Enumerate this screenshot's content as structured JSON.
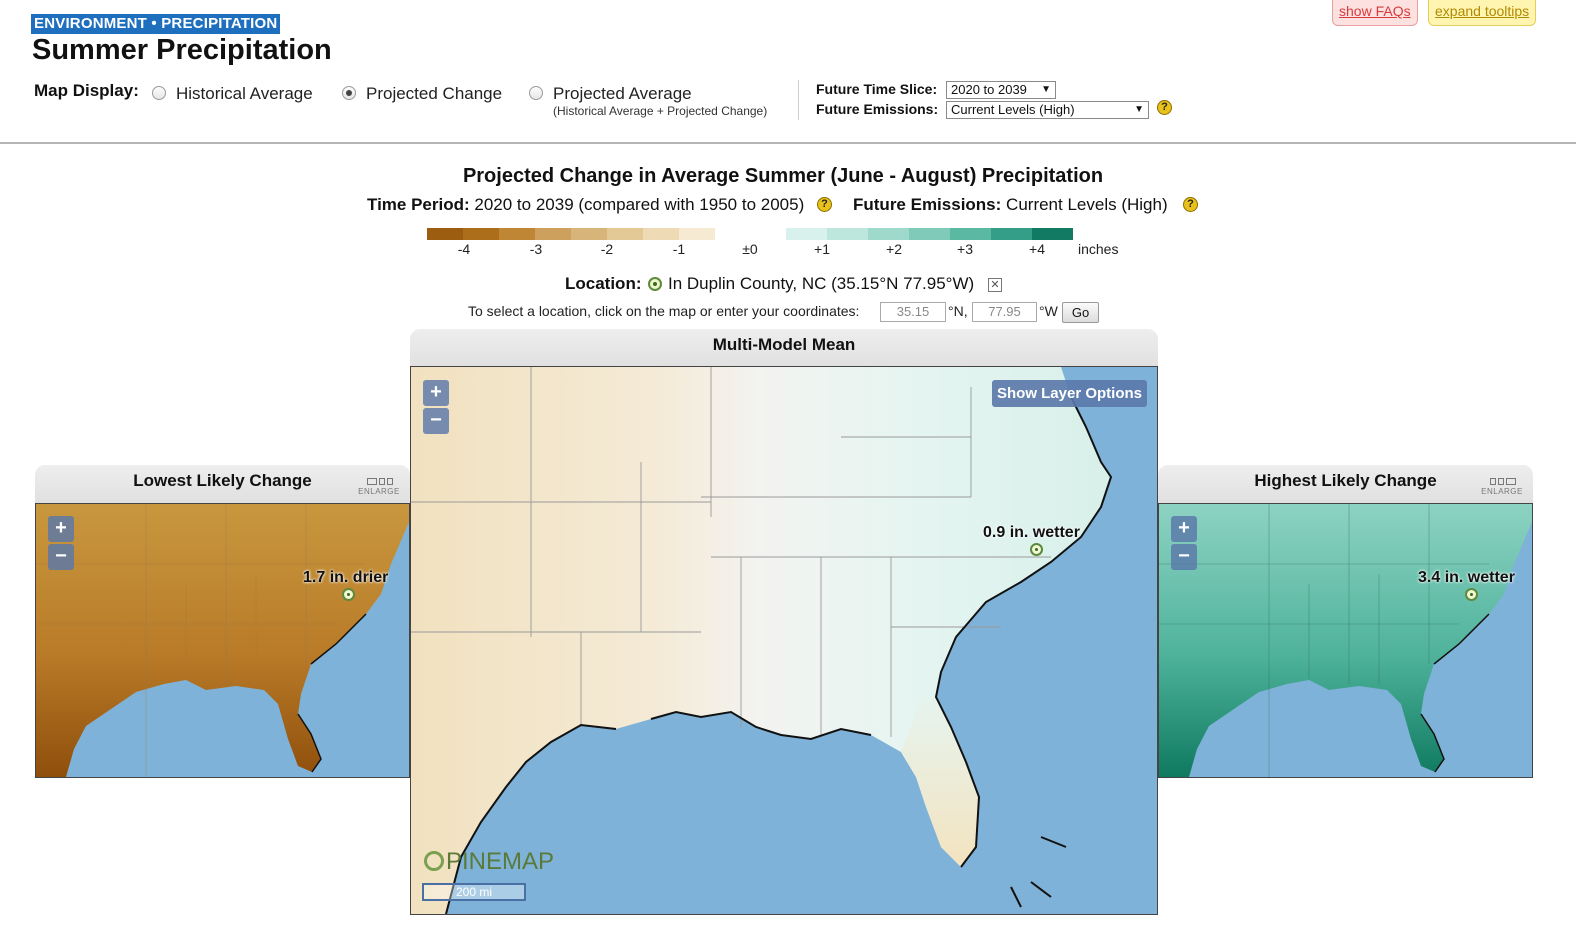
{
  "header": {
    "breadcrumb": "ENVIRONMENT • PRECIPITATION",
    "title": "Summer Precipitation",
    "faq_button": "show FAQs",
    "tooltips_button": "expand tooltips"
  },
  "controls": {
    "map_display_label": "Map Display:",
    "options": [
      {
        "label": "Historical Average",
        "checked": false
      },
      {
        "label": "Projected Change",
        "checked": true
      },
      {
        "label": "Projected Average",
        "sublabel": "(Historical Average + Projected Change)",
        "checked": false
      }
    ],
    "time_slice_label": "Future Time Slice:",
    "time_slice_value": "2020 to 2039",
    "emissions_label": "Future Emissions:",
    "emissions_value": "Current Levels (High)",
    "help_glyph": "?"
  },
  "chart": {
    "title": "Projected Change in Average Summer (June - August) Precipitation",
    "time_period_label": "Time Period:",
    "time_period_value": "2020 to 2039 (compared with 1950 to 2005)",
    "emissions_label": "Future Emissions:",
    "emissions_value": "Current Levels (High)"
  },
  "legend": {
    "ticks": [
      "-4",
      "-3",
      "-2",
      "-1",
      "±0",
      "+1",
      "+2",
      "+3",
      "+4"
    ],
    "unit": "inches",
    "dry_colors": [
      "#9c5d10",
      "#ad6e1c",
      "#bf8636",
      "#cda05e",
      "#d7b47a",
      "#e3c996",
      "#eedbb5",
      "#f6ead2"
    ],
    "wet_colors": [
      "#d9f1ec",
      "#bde6dd",
      "#9fd9cb",
      "#7fcab8",
      "#5ab8a3",
      "#359e88",
      "#127a63"
    ]
  },
  "location": {
    "label": "Location:",
    "value": "In Duplin County, NC (35.15°N 77.95°W)",
    "instruction": "To select a location, click on the map or enter your coordinates:",
    "lat": "35.15",
    "lat_unit": "°N,",
    "lon": "77.95",
    "lon_unit": "°W",
    "go_button": "Go"
  },
  "panels": {
    "low": {
      "title": "Lowest Likely Change",
      "enlarge": "ENLARGE",
      "value_label": "1.7 in. drier",
      "color_top": "#c8973e",
      "color_mid": "#b97b28",
      "color_gulf": "#8f4f0c"
    },
    "mean": {
      "title": "Multi-Model Mean",
      "value_label": "0.9 in. wetter",
      "layer_button": "Show Layer Options",
      "logo": "PINEMAP",
      "scale": "200 mi"
    },
    "high": {
      "title": "Highest Likely Change",
      "enlarge": "ENLARGE",
      "value_label": "3.4 in. wetter",
      "color_top": "#8dd2c2",
      "color_mid": "#4fb39c",
      "color_gulf": "#0f7a60"
    }
  },
  "map_colors": {
    "ocean": "#7fb2d8",
    "land_dry": "#f1e1bf",
    "land_neutral": "#f3f3f1",
    "land_wet": "#d8f0ea",
    "borders": "#9a9a9a"
  },
  "zoom": {
    "plus": "+",
    "minus": "−"
  }
}
